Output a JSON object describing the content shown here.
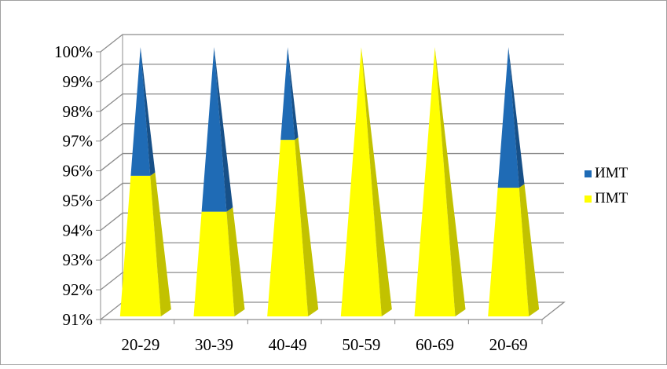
{
  "chart_data": {
    "type": "bar",
    "style": "stacked-100-pyramid",
    "categories": [
      "20-29",
      "30-39",
      "40-49",
      "50-59",
      "60-69",
      "20-69"
    ],
    "series": [
      {
        "name": "ПМТ",
        "color": "#FFFF00",
        "values": [
          95.7,
          94.5,
          96.9,
          100,
          100,
          95.3
        ]
      },
      {
        "name": "ИМТ",
        "color": "#1F6BB5",
        "values": [
          4.3,
          5.5,
          3.1,
          0,
          0,
          4.7
        ]
      }
    ],
    "ylim": [
      91,
      100
    ],
    "yticks": [
      "91%",
      "92%",
      "93%",
      "94%",
      "95%",
      "96%",
      "97%",
      "98%",
      "99%",
      "100%"
    ],
    "grid": true,
    "legend_position": "right",
    "legend": [
      {
        "name": "ИМТ",
        "color": "#1F6BB5"
      },
      {
        "name": "ПМТ",
        "color": "#FFFF00"
      }
    ]
  }
}
